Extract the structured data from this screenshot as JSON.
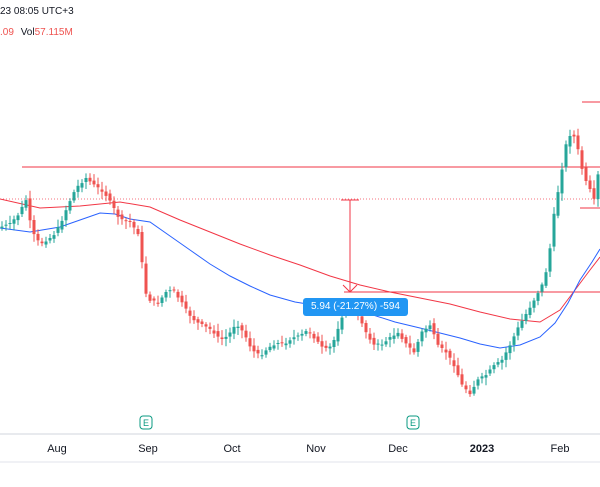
{
  "header": {
    "date_fragment": "23 08:05 UTC+3",
    "close_fragment": ".09",
    "vol_label": "Vol",
    "vol_value": "57.115M"
  },
  "measure_label": "5.94 (-21.27%) -594",
  "colors": {
    "up": "#26a69a",
    "down": "#ef5350",
    "ma_fast": "#2962ff",
    "ma_slow": "#f23645",
    "hline": "#f23645",
    "measure": "#2196f3",
    "event": "#089981"
  },
  "events": [
    {
      "icon": "earnings-event-icon",
      "label": "E",
      "date": "Sep"
    },
    {
      "icon": "earnings-event-icon",
      "label": "E",
      "date": "Dec"
    }
  ],
  "chart_data": {
    "type": "candlestick",
    "x_labels": [
      "Aug",
      "Sep",
      "Oct",
      "Nov",
      "Dec",
      "2023",
      "Feb"
    ],
    "y_axis": "hidden",
    "grid": false
  }
}
